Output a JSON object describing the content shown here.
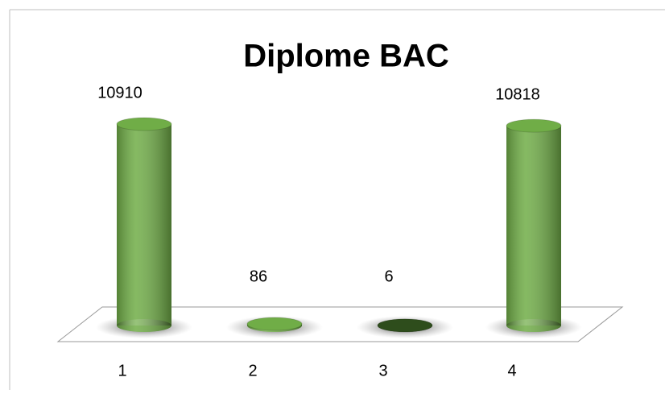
{
  "chart_data": {
    "type": "bar3d",
    "title": "Diplome BAC",
    "categories": [
      "1",
      "2",
      "3",
      "4"
    ],
    "values": [
      10910,
      86,
      6,
      10818
    ],
    "colors": [
      "#70ad47",
      "#70ad47",
      "#2e4d1c",
      "#70ad47"
    ]
  }
}
